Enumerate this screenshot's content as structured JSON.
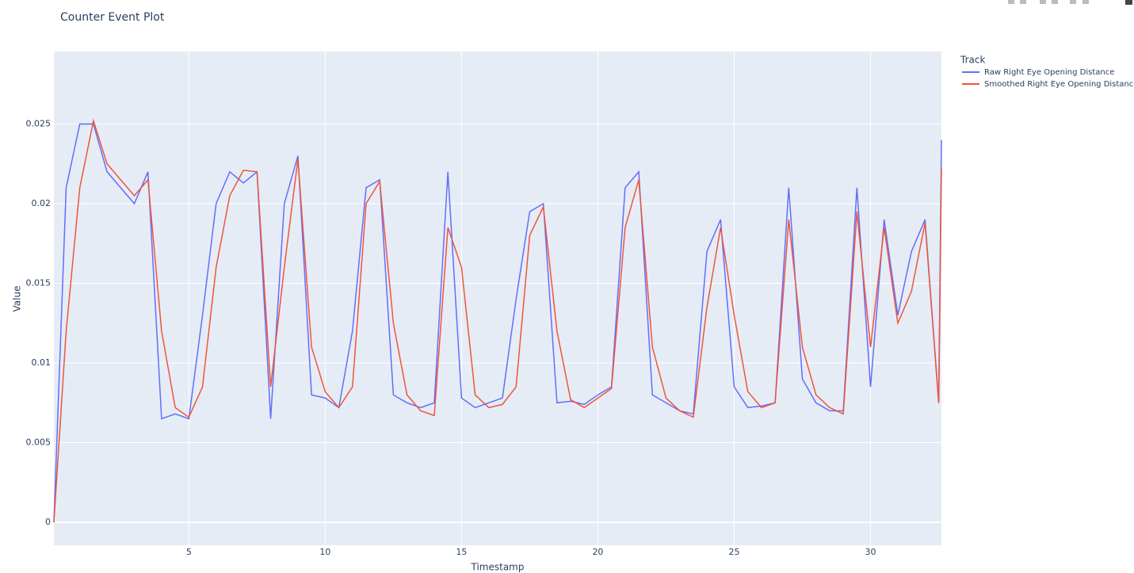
{
  "chart_data": {
    "type": "line",
    "title": "Counter Event Plot",
    "x_label": "Timestamp",
    "y_label": "Value",
    "legend_title": "Track",
    "legend_position": "outside-right",
    "grid": true,
    "x": [
      0.05,
      0.5,
      1,
      1.5,
      2,
      2.5,
      3,
      3.5,
      4,
      4.5,
      5,
      5.5,
      6,
      6.5,
      7,
      7.5,
      8,
      8.5,
      9,
      9.5,
      10,
      10.5,
      11,
      11.5,
      12,
      12.5,
      13,
      13.5,
      14,
      14.5,
      15,
      15.5,
      16,
      16.5,
      17,
      17.5,
      18,
      18.5,
      19,
      19.5,
      20,
      20.5,
      21,
      21.5,
      22,
      22.5,
      23,
      23.5,
      24,
      24.5,
      25,
      25.5,
      26,
      26.5,
      27,
      27.5,
      28,
      28.5,
      29,
      29.5,
      30,
      30.5,
      31,
      31.5,
      32,
      32.5,
      32.6
    ],
    "series": [
      {
        "name": "Raw Right Eye Opening Distance",
        "color": "#636efa",
        "values": [
          0,
          0.021,
          0.025,
          0.025,
          0.022,
          0.021,
          0.02,
          0.022,
          0.0065,
          0.0068,
          0.0065,
          0.013,
          0.02,
          0.022,
          0.0213,
          0.022,
          0.0065,
          0.02,
          0.023,
          0.008,
          0.0078,
          0.0072,
          0.012,
          0.021,
          0.0215,
          0.008,
          0.0075,
          0.0072,
          0.0075,
          0.022,
          0.0078,
          0.0072,
          0.0075,
          0.0078,
          0.014,
          0.0195,
          0.02,
          0.0075,
          0.0076,
          0.0074,
          0.008,
          0.0085,
          0.021,
          0.022,
          0.008,
          0.0075,
          0.007,
          0.0068,
          0.017,
          0.019,
          0.0085,
          0.0072,
          0.0073,
          0.0075,
          0.021,
          0.009,
          0.0075,
          0.007,
          0.007,
          0.021,
          0.0085,
          0.019,
          0.013,
          0.017,
          0.019,
          0.0075,
          0.024
        ]
      },
      {
        "name": "Smoothed Right Eye Opening Distance",
        "color": "#EF553B",
        "values": [
          0,
          0.012,
          0.021,
          0.0252,
          0.0225,
          0.0215,
          0.0205,
          0.0215,
          0.012,
          0.0072,
          0.0066,
          0.0085,
          0.016,
          0.0205,
          0.0221,
          0.022,
          0.0085,
          0.016,
          0.0228,
          0.011,
          0.0082,
          0.0072,
          0.0085,
          0.02,
          0.0214,
          0.0125,
          0.008,
          0.007,
          0.0067,
          0.0185,
          0.016,
          0.008,
          0.0072,
          0.0074,
          0.0085,
          0.018,
          0.0198,
          0.012,
          0.0077,
          0.0072,
          0.0078,
          0.0084,
          0.0185,
          0.0215,
          0.011,
          0.0078,
          0.007,
          0.0066,
          0.0135,
          0.0185,
          0.013,
          0.0082,
          0.0072,
          0.0075,
          0.019,
          0.011,
          0.008,
          0.0072,
          0.0068,
          0.0195,
          0.011,
          0.0185,
          0.0125,
          0.0145,
          0.0188,
          0.0075,
          0.0222
        ]
      }
    ],
    "xlim": [
      0.05,
      32.6
    ],
    "xticks": [
      5,
      10,
      15,
      20,
      25,
      30
    ],
    "ylim": [
      -0.00144,
      0.02955
    ],
    "yticks": [
      0,
      0.005,
      0.01,
      0.015,
      0.02,
      0.025
    ]
  }
}
